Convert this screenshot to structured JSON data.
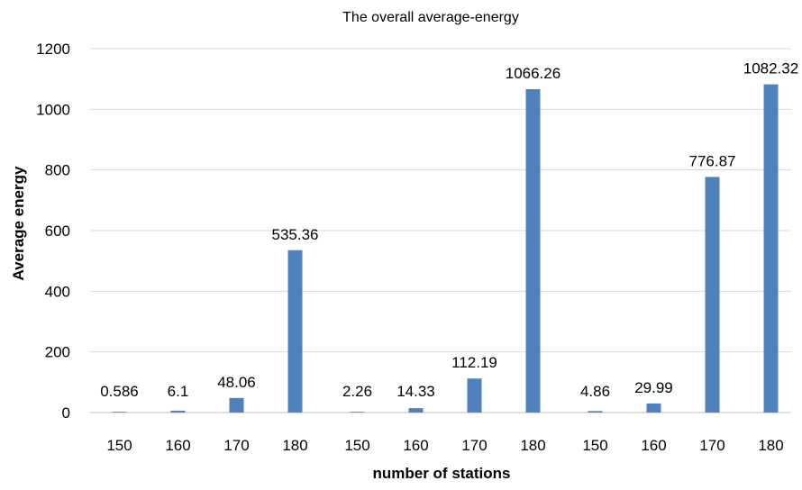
{
  "chart_data": {
    "type": "bar",
    "title": "The overall average-energy",
    "xlabel": "number of stations",
    "ylabel": "Average energy",
    "ylim": [
      0,
      1200
    ],
    "yticks": [
      0,
      200,
      400,
      600,
      800,
      1000,
      1200
    ],
    "grid": true,
    "bar_color": "#4F81BD",
    "groups": [
      {
        "categories": [
          "150",
          "160",
          "170",
          "180"
        ],
        "values": [
          0.586,
          6.1,
          48.06,
          535.36
        ],
        "labels": [
          "0.586",
          "6.1",
          "48.06",
          "535.36"
        ]
      },
      {
        "categories": [
          "150",
          "160",
          "170",
          "180"
        ],
        "values": [
          2.26,
          14.33,
          112.19,
          1066.26
        ],
        "labels": [
          "2.26",
          "14.33",
          "112.19",
          "1066.26"
        ]
      },
      {
        "categories": [
          "150",
          "160",
          "170",
          "180"
        ],
        "values": [
          4.86,
          29.99,
          776.87,
          1082.32
        ],
        "labels": [
          "4.86",
          "29.99",
          "776.87",
          "1082.32"
        ]
      }
    ]
  }
}
